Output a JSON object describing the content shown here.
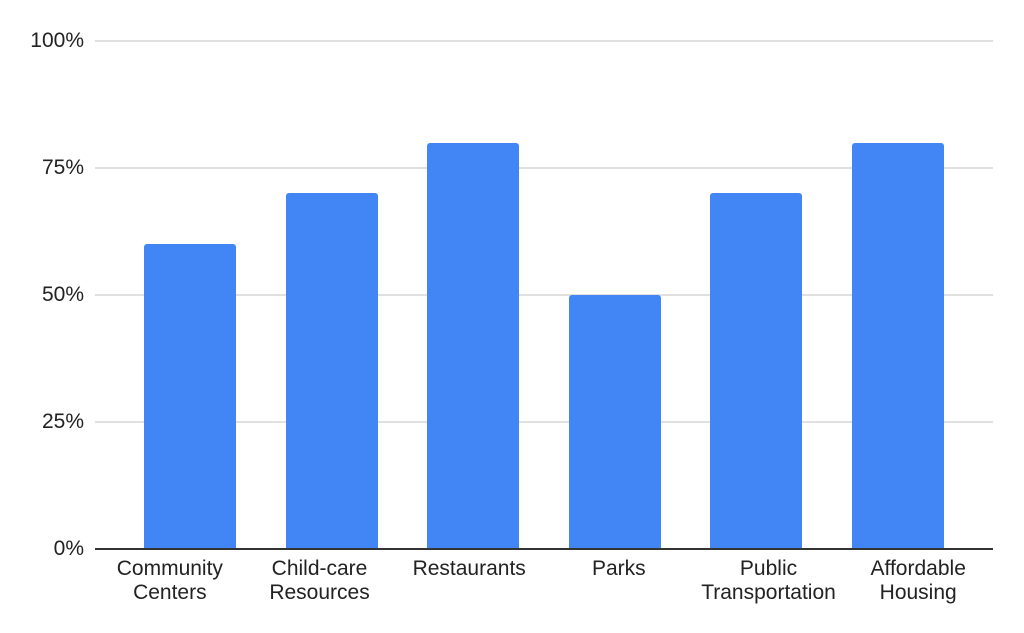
{
  "chart_data": {
    "type": "bar",
    "categories": [
      "Community Centers",
      "Child-care Resources",
      "Restaurants",
      "Parks",
      "Public Transportation",
      "Affordable Housing"
    ],
    "values": [
      60,
      70,
      80,
      50,
      70,
      80
    ],
    "value_unit": "%",
    "title": "",
    "xlabel": "",
    "ylabel": "",
    "ylim": [
      0,
      100
    ],
    "ytick_values": [
      0,
      25,
      50,
      75,
      100
    ],
    "ytick_labels": [
      "0%",
      "25%",
      "50%",
      "75%",
      "100%"
    ],
    "grid": true,
    "legend_position": "none",
    "colors": {
      "bar": "#4285f4",
      "gridline": "#e0e0e0",
      "axis_line": "#333333",
      "text": "#222222",
      "background": "#ffffff"
    }
  }
}
